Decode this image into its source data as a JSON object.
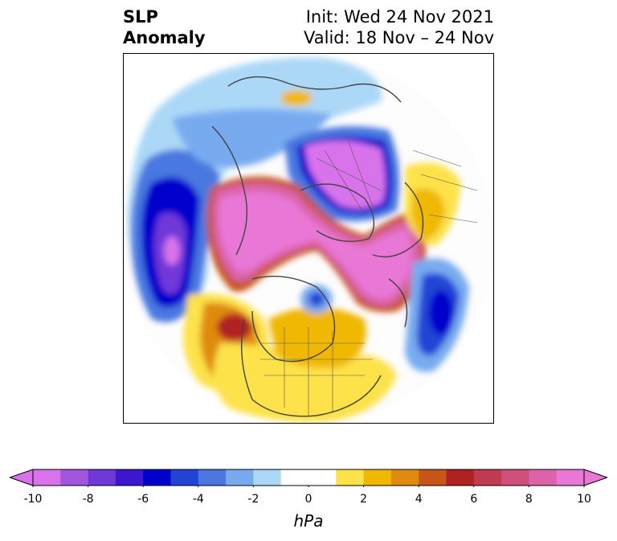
{
  "title": {
    "left_line1": "SLP",
    "left_line2": "Anomaly",
    "right_line1": "Init: Wed 24 Nov 2021",
    "right_line2": "Valid: 18 Nov – 24 Nov"
  },
  "map": {
    "projection": "north polar stereographic",
    "field": "sea level pressure anomaly"
  },
  "colorbar": {
    "units": "hPa",
    "min": -10,
    "max": 10,
    "ticks": [
      "-10",
      "-8",
      "-6",
      "-4",
      "-2",
      "0",
      "2",
      "4",
      "6",
      "8",
      "10"
    ],
    "levels": [
      -10,
      -9,
      -8,
      -7,
      -6,
      -5,
      -4,
      -3,
      -2,
      -1,
      1,
      2,
      3,
      4,
      5,
      6,
      7,
      8,
      9,
      10
    ],
    "colors": [
      "#d973ec",
      "#a256e0",
      "#6f38d8",
      "#3d16cf",
      "#0000cc",
      "#2244d6",
      "#4a78e0",
      "#78aaf0",
      "#acd8f8",
      "#ffffff",
      "#ffffff",
      "#fde24a",
      "#f0b800",
      "#e08a10",
      "#c85418",
      "#b02222",
      "#c03a50",
      "#d04f7a",
      "#dc63aa",
      "#e877d6"
    ],
    "extend": "both"
  }
}
